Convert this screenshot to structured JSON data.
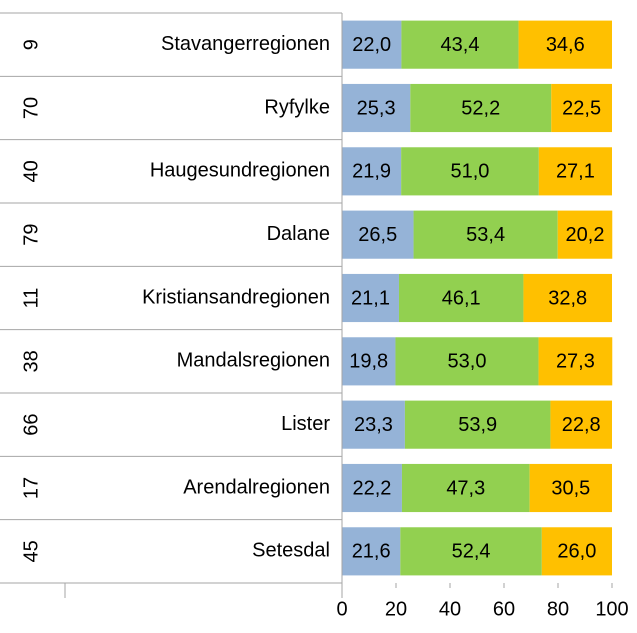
{
  "chart_data": {
    "type": "stacked-bar-horizontal",
    "category_groups": [
      9,
      70,
      40,
      79,
      11,
      38,
      66,
      17,
      45
    ],
    "categories": [
      "Stavangerregionen",
      "Ryfylke",
      "Haugesundregionen",
      "Dalane",
      "Kristiansandregionen",
      "Mandalsregionen",
      "Lister",
      "Arendalregionen",
      "Setesdal"
    ],
    "series": [
      {
        "color": "#95b3d7",
        "values": [
          22.0,
          25.3,
          21.9,
          26.5,
          21.1,
          19.8,
          23.3,
          22.2,
          21.6
        ],
        "value_labels": [
          "22,0",
          "25,3",
          "21,9",
          "26,5",
          "21,1",
          "19,8",
          "23,3",
          "22,2",
          "21,6"
        ]
      },
      {
        "color": "#92d050",
        "values": [
          43.4,
          52.2,
          51.0,
          53.4,
          46.1,
          53.0,
          53.9,
          47.3,
          52.4
        ],
        "value_labels": [
          "43,4",
          "52,2",
          "51,0",
          "53,4",
          "46,1",
          "53,0",
          "53,9",
          "47,3",
          "52,4"
        ]
      },
      {
        "color": "#ffc000",
        "values": [
          34.6,
          22.5,
          27.1,
          20.2,
          32.8,
          27.3,
          22.8,
          30.5,
          26.0
        ],
        "value_labels": [
          "34,6",
          "22,5",
          "27,1",
          "20,2",
          "32,8",
          "27,3",
          "22,8",
          "30,5",
          "26,0"
        ]
      }
    ],
    "xlim": [
      0,
      100
    ],
    "xticks": [
      0,
      20,
      40,
      60,
      80,
      100
    ]
  }
}
